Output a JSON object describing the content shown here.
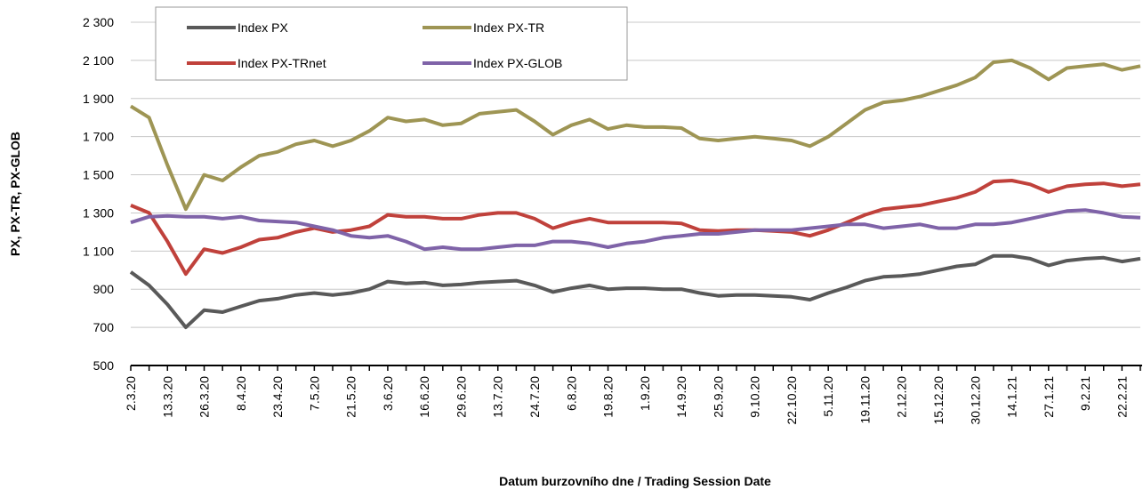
{
  "chart_data": {
    "type": "line",
    "x_label": "Datum burzovního dne / Trading Session Date",
    "y_label": "PX, PX-TR, PX-GLOB",
    "categories": [
      "2.3.20",
      null,
      "13.3.20",
      null,
      "26.3.20",
      null,
      "8.4.20",
      null,
      "23.4.20",
      null,
      "7.5.20",
      null,
      "21.5.20",
      null,
      "3.6.20",
      null,
      "16.6.20",
      null,
      "29.6.20",
      null,
      "13.7.20",
      null,
      "24.7.20",
      null,
      "6.8.20",
      null,
      "19.8.20",
      null,
      "1.9.20",
      null,
      "14.9.20",
      null,
      "25.9.20",
      null,
      "9.10.20",
      null,
      "22.10.20",
      null,
      "5.11.20",
      null,
      "19.11.20",
      null,
      "2.12.20",
      null,
      "15.12.20",
      null,
      "30.12.20",
      null,
      "14.1.21",
      null,
      "27.1.21",
      null,
      "9.2.21",
      null,
      "22.2.21",
      null
    ],
    "series": [
      {
        "name": "Index PX",
        "color": "#595959",
        "values": [
          990,
          920,
          820,
          700,
          790,
          780,
          810,
          840,
          850,
          870,
          880,
          870,
          880,
          900,
          940,
          930,
          935,
          920,
          925,
          935,
          940,
          945,
          920,
          885,
          905,
          920,
          900,
          905,
          905,
          900,
          900,
          880,
          865,
          870,
          870,
          865,
          860,
          845,
          880,
          910,
          945,
          965,
          970,
          980,
          1000,
          1020,
          1030,
          1075,
          1075,
          1060,
          1025,
          1050,
          1060,
          1065,
          1045,
          1060
        ]
      },
      {
        "name": "Index PX-TR",
        "color": "#9e9554",
        "values": [
          1860,
          1800,
          1550,
          1320,
          1500,
          1470,
          1540,
          1600,
          1620,
          1660,
          1680,
          1650,
          1680,
          1730,
          1800,
          1780,
          1790,
          1760,
          1770,
          1820,
          1830,
          1840,
          1780,
          1710,
          1760,
          1790,
          1740,
          1760,
          1750,
          1750,
          1745,
          1690,
          1680,
          1690,
          1700,
          1690,
          1680,
          1650,
          1700,
          1770,
          1840,
          1880,
          1890,
          1910,
          1940,
          1970,
          2010,
          2090,
          2100,
          2060,
          2000,
          2060,
          2070,
          2080,
          2050,
          2070
        ]
      },
      {
        "name": "Index PX-TRnet",
        "color": "#c0413b",
        "values": [
          1340,
          1300,
          1150,
          980,
          1110,
          1090,
          1120,
          1160,
          1170,
          1200,
          1220,
          1200,
          1210,
          1230,
          1290,
          1280,
          1280,
          1270,
          1270,
          1290,
          1300,
          1300,
          1270,
          1220,
          1250,
          1270,
          1250,
          1250,
          1250,
          1250,
          1245,
          1210,
          1205,
          1210,
          1210,
          1205,
          1200,
          1180,
          1210,
          1250,
          1290,
          1320,
          1330,
          1340,
          1360,
          1380,
          1410,
          1465,
          1470,
          1450,
          1410,
          1440,
          1450,
          1455,
          1440,
          1450
        ]
      },
      {
        "name": "Index PX-GLOB",
        "color": "#7f63a8",
        "values": [
          1250,
          1280,
          1285,
          1280,
          1280,
          1270,
          1280,
          1260,
          1255,
          1250,
          1230,
          1210,
          1180,
          1170,
          1180,
          1150,
          1110,
          1120,
          1110,
          1110,
          1120,
          1130,
          1130,
          1150,
          1150,
          1140,
          1120,
          1140,
          1150,
          1170,
          1180,
          1190,
          1190,
          1200,
          1210,
          1210,
          1210,
          1220,
          1230,
          1240,
          1240,
          1220,
          1230,
          1240,
          1220,
          1220,
          1240,
          1240,
          1250,
          1270,
          1290,
          1310,
          1315,
          1300,
          1280,
          1275
        ]
      }
    ],
    "ylim": [
      500,
      2300
    ],
    "yticks": [
      500,
      700,
      900,
      {
        "value": 1100,
        "label": "1 100"
      },
      {
        "value": 1300,
        "label": "1 300"
      },
      {
        "value": 1500,
        "label": "1 500"
      },
      {
        "value": 1700,
        "label": "1 700"
      },
      {
        "value": 1900,
        "label": "1 900"
      },
      {
        "value": 2100,
        "label": "2 100"
      },
      {
        "value": 2300,
        "label": "2 300"
      }
    ],
    "grid": true,
    "legend": "top-left"
  }
}
